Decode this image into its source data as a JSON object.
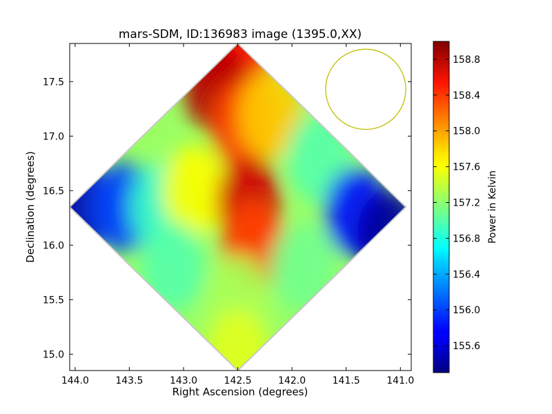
{
  "chart_data": {
    "type": "heatmap",
    "title": "mars-SDM, ID:136983 image (1395.0,XX)",
    "xlabel": "Right Ascension (degrees)",
    "ylabel": "Declination (degrees)",
    "xlim": [
      144.05,
      140.9
    ],
    "ylim": [
      14.85,
      17.85
    ],
    "x_ticks": [
      144.0,
      143.5,
      143.0,
      142.5,
      142.0,
      141.5,
      141.0
    ],
    "x_tick_labels": [
      "144.0",
      "143.5",
      "143.0",
      "142.5",
      "142.0",
      "141.5",
      "141.0"
    ],
    "y_ticks": [
      15.0,
      15.5,
      16.0,
      16.5,
      17.0,
      17.5
    ],
    "y_tick_labels": [
      "15.0",
      "15.5",
      "16.0",
      "16.5",
      "17.0",
      "17.5"
    ],
    "colorbar": {
      "label": "Power in Kelvin",
      "colormap": "jet",
      "range": [
        155.3,
        159.0
      ],
      "ticks": [
        155.6,
        156.0,
        156.4,
        156.8,
        157.2,
        157.6,
        158.0,
        158.4,
        158.8
      ],
      "tick_labels": [
        "155.6",
        "156.0",
        "156.4",
        "156.8",
        "157.2",
        "157.6",
        "158.0",
        "158.4",
        "158.8"
      ]
    },
    "footprint": {
      "shape": "diamond",
      "vertices": [
        [
          142.5,
          17.85
        ],
        [
          140.95,
          16.35
        ],
        [
          142.5,
          14.85
        ],
        [
          144.05,
          16.35
        ]
      ]
    },
    "beam_circle": {
      "center": [
        141.32,
        17.43
      ],
      "radius_deg": 0.37,
      "color": "#bfbf00"
    },
    "field": {
      "description_values": "approx. power (K) at sample points",
      "samples": [
        {
          "x": 143.95,
          "y": 16.35,
          "v": 155.5
        },
        {
          "x": 143.55,
          "y": 16.35,
          "v": 156.0
        },
        {
          "x": 143.2,
          "y": 16.35,
          "v": 156.9
        },
        {
          "x": 142.9,
          "y": 16.5,
          "v": 157.6
        },
        {
          "x": 142.5,
          "y": 17.7,
          "v": 158.5
        },
        {
          "x": 142.7,
          "y": 17.45,
          "v": 158.8
        },
        {
          "x": 142.45,
          "y": 17.1,
          "v": 158.3
        },
        {
          "x": 142.2,
          "y": 17.2,
          "v": 157.8
        },
        {
          "x": 142.4,
          "y": 16.4,
          "v": 158.7
        },
        {
          "x": 142.35,
          "y": 16.0,
          "v": 158.3
        },
        {
          "x": 141.75,
          "y": 16.8,
          "v": 157.0
        },
        {
          "x": 141.4,
          "y": 16.3,
          "v": 155.8
        },
        {
          "x": 141.1,
          "y": 16.1,
          "v": 155.4
        },
        {
          "x": 142.5,
          "y": 15.5,
          "v": 157.3
        },
        {
          "x": 142.5,
          "y": 15.0,
          "v": 157.5
        },
        {
          "x": 143.1,
          "y": 15.8,
          "v": 157.0
        },
        {
          "x": 141.9,
          "y": 15.8,
          "v": 157.1
        }
      ]
    }
  }
}
